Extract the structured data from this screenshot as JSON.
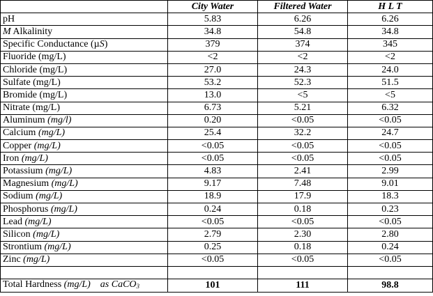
{
  "header": {
    "blank": "",
    "col1": "City Water",
    "col2": "Filtered Water",
    "col3": "H L T"
  },
  "rows": [
    {
      "name": "pH",
      "unit": "",
      "city": "5.83",
      "filtered": "6.26",
      "hlt": "6.26"
    },
    {
      "name_italic": "M",
      "name": " Alkalinity",
      "unit": "",
      "city": "34.8",
      "filtered": "54.8",
      "hlt": "34.8"
    },
    {
      "name": "Specific Conductance (",
      "name_mu": "µ",
      "name_s": "S",
      "name_end": ")",
      "city": "379",
      "filtered": "374",
      "hlt": "345"
    },
    {
      "name": "Fluoride (mg/L)",
      "unit": "",
      "city": "<2",
      "filtered": "<2",
      "hlt": "<2"
    },
    {
      "name": "Chloride (mg/L)",
      "unit": "",
      "city": "27.0",
      "filtered": "24.3",
      "hlt": "24.0"
    },
    {
      "name": "Sulfate (mg/L)",
      "unit": "",
      "city": "53.2",
      "filtered": "52.3",
      "hlt": "51.5"
    },
    {
      "name": "Bromide (mg/L)",
      "unit": "",
      "city": "13.0",
      "filtered": "<5",
      "hlt": "<5"
    },
    {
      "name": "Nitrate (mg/L)",
      "unit": "",
      "city": "6.73",
      "filtered": "5.21",
      "hlt": "6.32"
    },
    {
      "name": "Aluminum ",
      "unit": "(mg/l)",
      "city": "0.20",
      "filtered": "<0.05",
      "hlt": "<0.05"
    },
    {
      "name": "Calcium ",
      "unit": "(mg/L)",
      "city": "25.4",
      "filtered": "32.2",
      "hlt": "24.7"
    },
    {
      "name": "Copper ",
      "unit": "(mg/L)",
      "city": "<0.05",
      "filtered": "<0.05",
      "hlt": "<0.05"
    },
    {
      "name": "Iron ",
      "unit": "(mg/L)",
      "city": "<0.05",
      "filtered": "<0.05",
      "hlt": "<0.05"
    },
    {
      "name": "Potassium ",
      "unit": "(mg/L)",
      "city": "4.83",
      "filtered": "2.41",
      "hlt": "2.99"
    },
    {
      "name": "Magnesium ",
      "unit": "(mg/L)",
      "city": "9.17",
      "filtered": "7.48",
      "hlt": "9.01"
    },
    {
      "name": "Sodium ",
      "unit": "(mg/L)",
      "city": "18.9",
      "filtered": "17.9",
      "hlt": "18.3"
    },
    {
      "name": "Phosphorus ",
      "unit": "(mg/L)",
      "city": "0.24",
      "filtered": "0.18",
      "hlt": "0.23"
    },
    {
      "name": "Lead ",
      "unit": "(mg/L)",
      "city": "<0.05",
      "filtered": "<0.05",
      "hlt": "<0.05"
    },
    {
      "name": "Silicon ",
      "unit": "(mg/L)",
      "city": "2.79",
      "filtered": "2.30",
      "hlt": "2.80"
    },
    {
      "name": "Strontium ",
      "unit": "(mg/L)",
      "city": "0.25",
      "filtered": "0.18",
      "hlt": "0.24"
    },
    {
      "name": "Zinc ",
      "unit": "(mg/L)",
      "city": "<0.05",
      "filtered": "<0.05",
      "hlt": "<0.05"
    }
  ],
  "total": {
    "name": "Total Hardness ",
    "unit": "(mg/L)",
    "as_text": "as CaCO",
    "as_sub": "3",
    "city": "101",
    "filtered": "111",
    "hlt": "98.8"
  }
}
